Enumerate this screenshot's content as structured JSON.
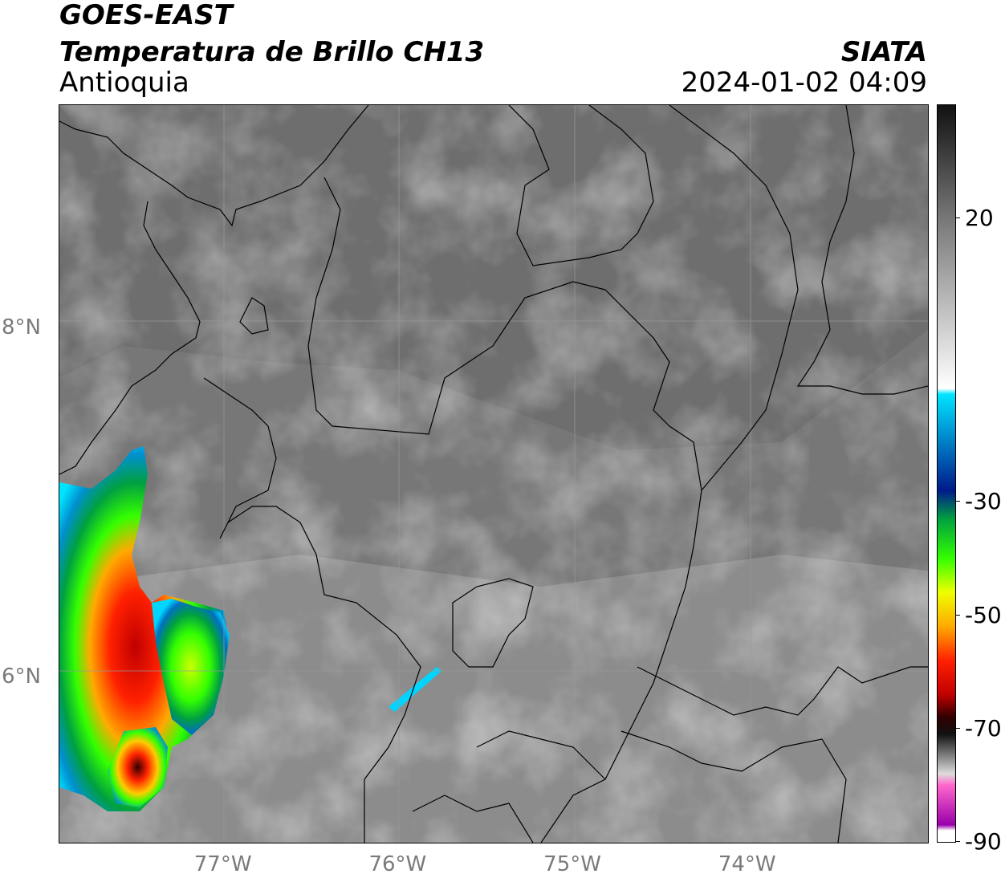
{
  "header": {
    "satellite": "GOES-EAST",
    "product": "Temperatura de Brillo CH13",
    "region": "Antioquia",
    "organization": "SIATA",
    "timestamp": "2024-01-02 04:09"
  },
  "map": {
    "lat_labels": [
      {
        "value": 8,
        "label": "8°N"
      },
      {
        "value": 6,
        "label": "6°N"
      }
    ],
    "lon_labels": [
      {
        "value": -77,
        "label": "77°W"
      },
      {
        "value": -76,
        "label": "76°W"
      },
      {
        "value": -75,
        "label": "75°W"
      },
      {
        "value": -74,
        "label": "74°W"
      }
    ],
    "extent": {
      "lon_min": -77.94,
      "lon_max": -72.97,
      "lat_min": 5.06,
      "lat_max": 9.28
    },
    "colors": {
      "background_gray": "#767676",
      "gridline": "#9a9a9a",
      "border": "#000000"
    }
  },
  "colorbar": {
    "ticks": [
      {
        "value": 20,
        "label": "20"
      },
      {
        "value": -30,
        "label": "-30"
      },
      {
        "value": -50,
        "label": "-50"
      },
      {
        "value": -70,
        "label": "-70"
      },
      {
        "value": -90,
        "label": "-90"
      }
    ],
    "range": [
      -90,
      40
    ],
    "stops": [
      {
        "value": 40,
        "color": "#111111"
      },
      {
        "value": 20,
        "color": "#777777"
      },
      {
        "value": 5,
        "color": "#bbbbbb"
      },
      {
        "value": -10,
        "color": "#ffffff"
      },
      {
        "value": -11,
        "color": "#00e5ff"
      },
      {
        "value": -18,
        "color": "#0090d0"
      },
      {
        "value": -28,
        "color": "#001a8a"
      },
      {
        "value": -33,
        "color": "#00a040"
      },
      {
        "value": -40,
        "color": "#33ff00"
      },
      {
        "value": -46,
        "color": "#eeff00"
      },
      {
        "value": -52,
        "color": "#ffaa00"
      },
      {
        "value": -58,
        "color": "#ff2000"
      },
      {
        "value": -64,
        "color": "#c00000"
      },
      {
        "value": -68,
        "color": "#300000"
      },
      {
        "value": -71,
        "color": "#111111"
      },
      {
        "value": -78,
        "color": "#dddddd"
      },
      {
        "value": -80,
        "color": "#ff66cc"
      },
      {
        "value": -87,
        "color": "#9900aa"
      },
      {
        "value": -88,
        "color": "#ffffff"
      }
    ]
  }
}
